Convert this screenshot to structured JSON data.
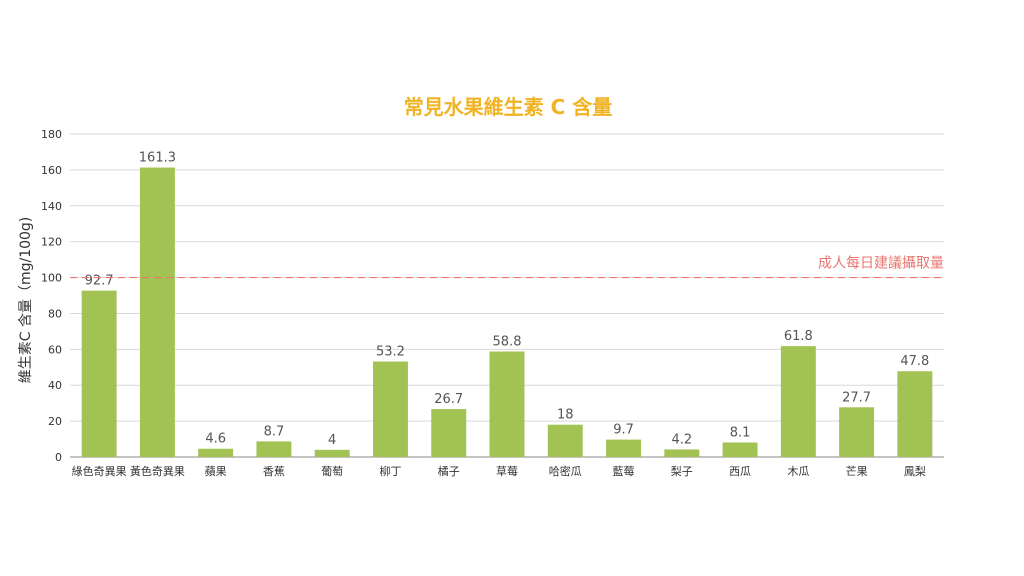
{
  "chart_data": {
    "type": "bar",
    "title": "常見水果維生素 C 含量",
    "xlabel": "",
    "ylabel": "維生素C 含量（mg/100g)",
    "categories": [
      "綠色奇異果",
      "黃色奇異果",
      "蘋果",
      "香蕉",
      "葡萄",
      "柳丁",
      "橘子",
      "草莓",
      "哈密瓜",
      "藍莓",
      "梨子",
      "西瓜",
      "木瓜",
      "芒果",
      "鳳梨"
    ],
    "values": [
      92.7,
      161.3,
      4.6,
      8.7,
      4,
      53.2,
      26.7,
      58.8,
      18,
      9.7,
      4.2,
      8.1,
      61.8,
      27.7,
      47.8
    ],
    "data_labels": [
      "92.7",
      "161.3",
      "4.6",
      "8.7",
      "4",
      "53.2",
      "26.7",
      "58.8",
      "18",
      "9.7",
      "4.2",
      "8.1",
      "61.8",
      "27.7",
      "47.8"
    ],
    "yticks": [
      "0",
      "20",
      "40",
      "60",
      "80",
      "100",
      "120",
      "140",
      "160",
      "180"
    ],
    "ytick_values": [
      0,
      20,
      40,
      60,
      80,
      100,
      120,
      140,
      160,
      180
    ],
    "ylim": [
      0,
      180
    ],
    "grid": true,
    "reference_line": {
      "value": 100,
      "label": "成人每日建議攝取量"
    },
    "colors": {
      "bar": "#a2c353",
      "title": "#f0b323",
      "reference": "#e8766e",
      "grid": "#d9d9d9"
    }
  }
}
